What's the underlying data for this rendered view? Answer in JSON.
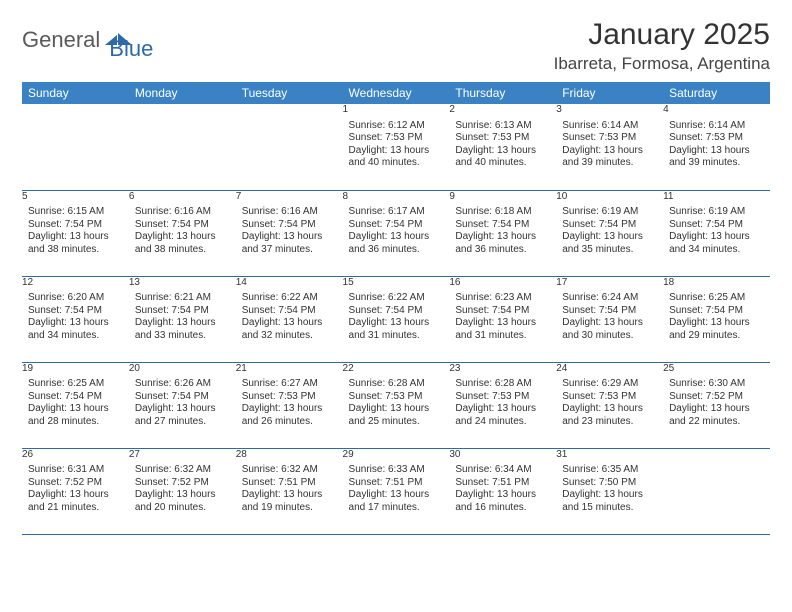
{
  "brand": {
    "part1": "General",
    "part2": "Blue"
  },
  "title": "January 2025",
  "location": "Ibarreta, Formosa, Argentina",
  "colors": {
    "header_bg": "#3a82c4",
    "header_text": "#ffffff",
    "daynum_bg": "#e8e8e8",
    "rule": "#2f6aa8",
    "brand_accent": "#2f6aa8"
  },
  "weekdays": [
    "Sunday",
    "Monday",
    "Tuesday",
    "Wednesday",
    "Thursday",
    "Friday",
    "Saturday"
  ],
  "weeks": [
    [
      null,
      null,
      null,
      {
        "n": "1",
        "sunrise": "6:12 AM",
        "sunset": "7:53 PM",
        "daylight": "13 hours and 40 minutes."
      },
      {
        "n": "2",
        "sunrise": "6:13 AM",
        "sunset": "7:53 PM",
        "daylight": "13 hours and 40 minutes."
      },
      {
        "n": "3",
        "sunrise": "6:14 AM",
        "sunset": "7:53 PM",
        "daylight": "13 hours and 39 minutes."
      },
      {
        "n": "4",
        "sunrise": "6:14 AM",
        "sunset": "7:53 PM",
        "daylight": "13 hours and 39 minutes."
      }
    ],
    [
      {
        "n": "5",
        "sunrise": "6:15 AM",
        "sunset": "7:54 PM",
        "daylight": "13 hours and 38 minutes."
      },
      {
        "n": "6",
        "sunrise": "6:16 AM",
        "sunset": "7:54 PM",
        "daylight": "13 hours and 38 minutes."
      },
      {
        "n": "7",
        "sunrise": "6:16 AM",
        "sunset": "7:54 PM",
        "daylight": "13 hours and 37 minutes."
      },
      {
        "n": "8",
        "sunrise": "6:17 AM",
        "sunset": "7:54 PM",
        "daylight": "13 hours and 36 minutes."
      },
      {
        "n": "9",
        "sunrise": "6:18 AM",
        "sunset": "7:54 PM",
        "daylight": "13 hours and 36 minutes."
      },
      {
        "n": "10",
        "sunrise": "6:19 AM",
        "sunset": "7:54 PM",
        "daylight": "13 hours and 35 minutes."
      },
      {
        "n": "11",
        "sunrise": "6:19 AM",
        "sunset": "7:54 PM",
        "daylight": "13 hours and 34 minutes."
      }
    ],
    [
      {
        "n": "12",
        "sunrise": "6:20 AM",
        "sunset": "7:54 PM",
        "daylight": "13 hours and 34 minutes."
      },
      {
        "n": "13",
        "sunrise": "6:21 AM",
        "sunset": "7:54 PM",
        "daylight": "13 hours and 33 minutes."
      },
      {
        "n": "14",
        "sunrise": "6:22 AM",
        "sunset": "7:54 PM",
        "daylight": "13 hours and 32 minutes."
      },
      {
        "n": "15",
        "sunrise": "6:22 AM",
        "sunset": "7:54 PM",
        "daylight": "13 hours and 31 minutes."
      },
      {
        "n": "16",
        "sunrise": "6:23 AM",
        "sunset": "7:54 PM",
        "daylight": "13 hours and 31 minutes."
      },
      {
        "n": "17",
        "sunrise": "6:24 AM",
        "sunset": "7:54 PM",
        "daylight": "13 hours and 30 minutes."
      },
      {
        "n": "18",
        "sunrise": "6:25 AM",
        "sunset": "7:54 PM",
        "daylight": "13 hours and 29 minutes."
      }
    ],
    [
      {
        "n": "19",
        "sunrise": "6:25 AM",
        "sunset": "7:54 PM",
        "daylight": "13 hours and 28 minutes."
      },
      {
        "n": "20",
        "sunrise": "6:26 AM",
        "sunset": "7:54 PM",
        "daylight": "13 hours and 27 minutes."
      },
      {
        "n": "21",
        "sunrise": "6:27 AM",
        "sunset": "7:53 PM",
        "daylight": "13 hours and 26 minutes."
      },
      {
        "n": "22",
        "sunrise": "6:28 AM",
        "sunset": "7:53 PM",
        "daylight": "13 hours and 25 minutes."
      },
      {
        "n": "23",
        "sunrise": "6:28 AM",
        "sunset": "7:53 PM",
        "daylight": "13 hours and 24 minutes."
      },
      {
        "n": "24",
        "sunrise": "6:29 AM",
        "sunset": "7:53 PM",
        "daylight": "13 hours and 23 minutes."
      },
      {
        "n": "25",
        "sunrise": "6:30 AM",
        "sunset": "7:52 PM",
        "daylight": "13 hours and 22 minutes."
      }
    ],
    [
      {
        "n": "26",
        "sunrise": "6:31 AM",
        "sunset": "7:52 PM",
        "daylight": "13 hours and 21 minutes."
      },
      {
        "n": "27",
        "sunrise": "6:32 AM",
        "sunset": "7:52 PM",
        "daylight": "13 hours and 20 minutes."
      },
      {
        "n": "28",
        "sunrise": "6:32 AM",
        "sunset": "7:51 PM",
        "daylight": "13 hours and 19 minutes."
      },
      {
        "n": "29",
        "sunrise": "6:33 AM",
        "sunset": "7:51 PM",
        "daylight": "13 hours and 17 minutes."
      },
      {
        "n": "30",
        "sunrise": "6:34 AM",
        "sunset": "7:51 PM",
        "daylight": "13 hours and 16 minutes."
      },
      {
        "n": "31",
        "sunrise": "6:35 AM",
        "sunset": "7:50 PM",
        "daylight": "13 hours and 15 minutes."
      },
      null
    ]
  ],
  "labels": {
    "sunrise": "Sunrise:",
    "sunset": "Sunset:",
    "daylight": "Daylight:"
  }
}
